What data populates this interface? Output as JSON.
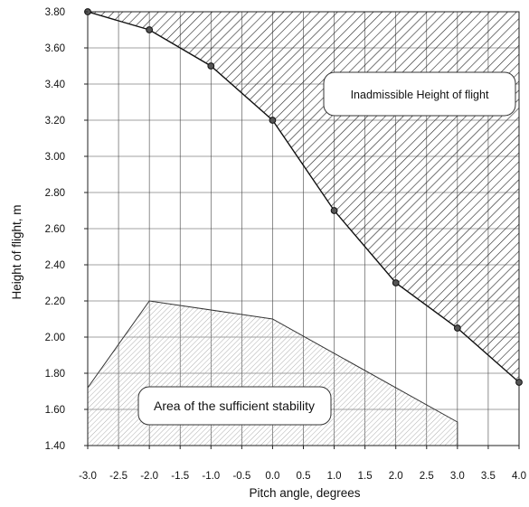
{
  "chart_data": {
    "type": "line",
    "xlabel": "Pitch angle, degrees",
    "ylabel": "Height of flight, m",
    "xlim": [
      -3.0,
      4.0
    ],
    "ylim": [
      1.4,
      3.8
    ],
    "x_ticks": [
      "-3.0",
      "-2.5",
      "-2.0",
      "-1.5",
      "-1.0",
      "-0.5",
      "0.0",
      "0.5",
      "1.0",
      "1.5",
      "2.0",
      "2.5",
      "3.0",
      "3.5",
      "4.0"
    ],
    "y_ticks": [
      "1.40",
      "1.60",
      "1.80",
      "2.00",
      "2.20",
      "2.40",
      "2.60",
      "2.80",
      "3.00",
      "3.20",
      "3.40",
      "3.60",
      "3.80"
    ],
    "grid": true,
    "series": [
      {
        "marker": "circle",
        "x": [
          -3.0,
          -2.0,
          -1.0,
          0.0,
          1.0,
          2.0,
          3.0,
          4.0
        ],
        "y": [
          3.8,
          3.7,
          3.5,
          3.2,
          2.7,
          2.3,
          2.05,
          1.75
        ]
      },
      {
        "marker": "none",
        "x": [
          -3.0,
          -2.0,
          0.0,
          3.0,
          3.0
        ],
        "y": [
          1.72,
          2.2,
          2.1,
          1.53,
          1.4
        ]
      }
    ],
    "regions": [
      {
        "label": "Inadmissible Height of flight",
        "fill": "diagonal-hatch-dense"
      },
      {
        "label": "Area of the sufficient stability",
        "fill": "diagonal-hatch-light"
      }
    ]
  }
}
